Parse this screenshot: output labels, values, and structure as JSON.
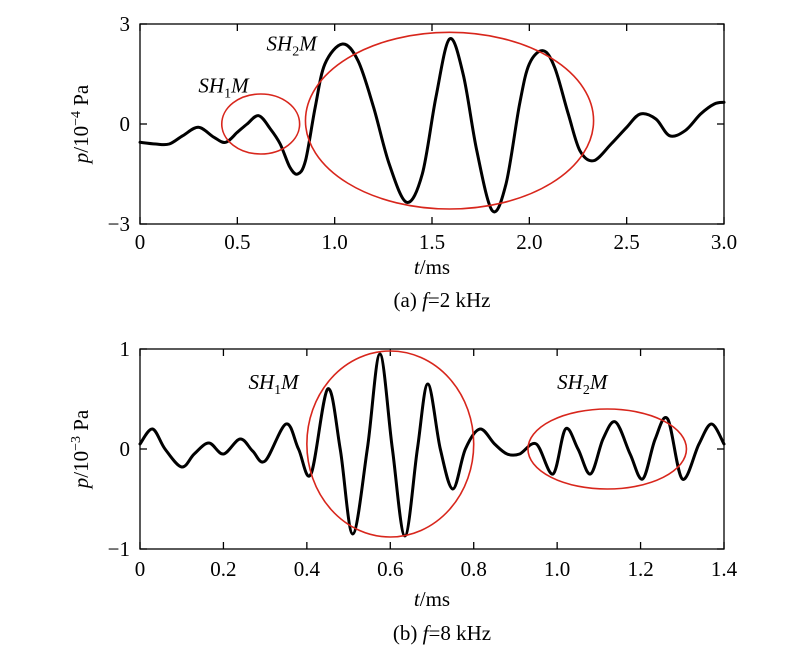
{
  "chart_data": [
    {
      "type": "line",
      "caption": "(a) f=2 kHz",
      "caption_parts": {
        "prefix": "(a) ",
        "var": "f",
        "rest": "=2 kHz"
      },
      "xlabel": {
        "var": "t",
        "unit": "/ms"
      },
      "ylabel": {
        "var": "p",
        "unit_base": "/10",
        "unit_exp": "−4",
        "unit_tail": " Pa"
      },
      "xlim": [
        0,
        3.0
      ],
      "ylim": [
        -3,
        3
      ],
      "xticks": [
        0,
        0.5,
        1.0,
        1.5,
        2.0,
        2.5,
        3.0
      ],
      "xtick_labels": [
        "0",
        "0.5",
        "1.0",
        "1.5",
        "2.0",
        "2.5",
        "3.0"
      ],
      "yticks": [
        -3,
        0,
        3
      ],
      "ytick_labels": [
        "−3",
        "0",
        "3"
      ],
      "series": [
        {
          "x": [
            0,
            0.08,
            0.15,
            0.22,
            0.3,
            0.38,
            0.44,
            0.5,
            0.55,
            0.61,
            0.67,
            0.72,
            0.77,
            0.81,
            0.85,
            0.9,
            0.95,
            1.04,
            1.12,
            1.2,
            1.28,
            1.37,
            1.45,
            1.52,
            1.59,
            1.66,
            1.73,
            1.81,
            1.88,
            1.95,
            2.0,
            2.07,
            2.13,
            2.2,
            2.26,
            2.33,
            2.42,
            2.5,
            2.57,
            2.65,
            2.72,
            2.8,
            2.88,
            2.95,
            3.0
          ],
          "y": [
            -0.55,
            -0.6,
            -0.6,
            -0.35,
            -0.1,
            -0.4,
            -0.55,
            -0.25,
            0.0,
            0.25,
            -0.15,
            -0.6,
            -1.3,
            -1.5,
            -1.1,
            0.5,
            1.8,
            2.4,
            1.9,
            0.5,
            -1.2,
            -2.35,
            -1.5,
            0.8,
            2.55,
            1.5,
            -0.8,
            -2.6,
            -1.8,
            0.6,
            1.8,
            2.2,
            1.7,
            0.3,
            -0.8,
            -1.1,
            -0.6,
            -0.1,
            0.3,
            0.15,
            -0.35,
            -0.2,
            0.3,
            0.6,
            0.65
          ]
        }
      ],
      "annotations": [
        {
          "base": "SH",
          "sub": "1",
          "tail": "M",
          "x": 0.3,
          "y": 0.95
        },
        {
          "base": "SH",
          "sub": "2",
          "tail": "M",
          "x": 0.65,
          "y": 2.2
        }
      ],
      "ellipses": [
        {
          "cx": 0.62,
          "cy": 0.0,
          "rx": 0.2,
          "ry": 0.9,
          "color": "#d8261c"
        },
        {
          "cx": 1.59,
          "cy": 0.1,
          "rx": 0.74,
          "ry": 2.65,
          "color": "#d8261c"
        }
      ]
    },
    {
      "type": "line",
      "caption": "(b) f=8 kHz",
      "caption_parts": {
        "prefix": "(b) ",
        "var": "f",
        "rest": "=8 kHz"
      },
      "xlabel": {
        "var": "t",
        "unit": "/ms"
      },
      "ylabel": {
        "var": "p",
        "unit_base": "/10",
        "unit_exp": "−3",
        "unit_tail": " Pa"
      },
      "xlim": [
        0,
        1.4
      ],
      "ylim": [
        -1,
        1
      ],
      "xticks": [
        0,
        0.2,
        0.4,
        0.6,
        0.8,
        1.0,
        1.2,
        1.4
      ],
      "xtick_labels": [
        "0",
        "0.2",
        "0.4",
        "0.6",
        "0.8",
        "1.0",
        "1.2",
        "1.4"
      ],
      "yticks": [
        -1,
        0,
        1
      ],
      "ytick_labels": [
        "−1",
        "0",
        "1"
      ],
      "series": [
        {
          "x": [
            0,
            0.03,
            0.06,
            0.1,
            0.13,
            0.165,
            0.2,
            0.24,
            0.27,
            0.3,
            0.35,
            0.38,
            0.41,
            0.45,
            0.48,
            0.51,
            0.545,
            0.575,
            0.605,
            0.635,
            0.665,
            0.69,
            0.72,
            0.75,
            0.78,
            0.815,
            0.85,
            0.88,
            0.91,
            0.95,
            0.99,
            1.02,
            1.05,
            1.08,
            1.11,
            1.14,
            1.175,
            1.205,
            1.235,
            1.265,
            1.3,
            1.34,
            1.37,
            1.4
          ],
          "y": [
            0.05,
            0.2,
            0.0,
            -0.18,
            -0.05,
            0.06,
            -0.05,
            0.1,
            -0.02,
            -0.12,
            0.25,
            0.0,
            -0.25,
            0.6,
            0.0,
            -0.85,
            0.0,
            0.95,
            0.0,
            -0.87,
            0.0,
            0.65,
            0.0,
            -0.4,
            0.0,
            0.2,
            0.05,
            -0.05,
            -0.05,
            0.05,
            -0.25,
            0.2,
            0.0,
            -0.25,
            0.1,
            0.27,
            -0.05,
            -0.3,
            0.1,
            0.3,
            -0.3,
            0.05,
            0.25,
            0.05
          ]
        }
      ],
      "annotations": [
        {
          "base": "SH",
          "sub": "1",
          "tail": "M",
          "x": 0.26,
          "y": 0.6
        },
        {
          "base": "SH",
          "sub": "2",
          "tail": "M",
          "x": 1.0,
          "y": 0.6
        }
      ],
      "ellipses": [
        {
          "cx": 0.6,
          "cy": 0.05,
          "rx": 0.2,
          "ry": 0.93,
          "color": "#d8261c"
        },
        {
          "cx": 1.12,
          "cy": 0.0,
          "rx": 0.19,
          "ry": 0.4,
          "color": "#d8261c"
        }
      ]
    }
  ]
}
